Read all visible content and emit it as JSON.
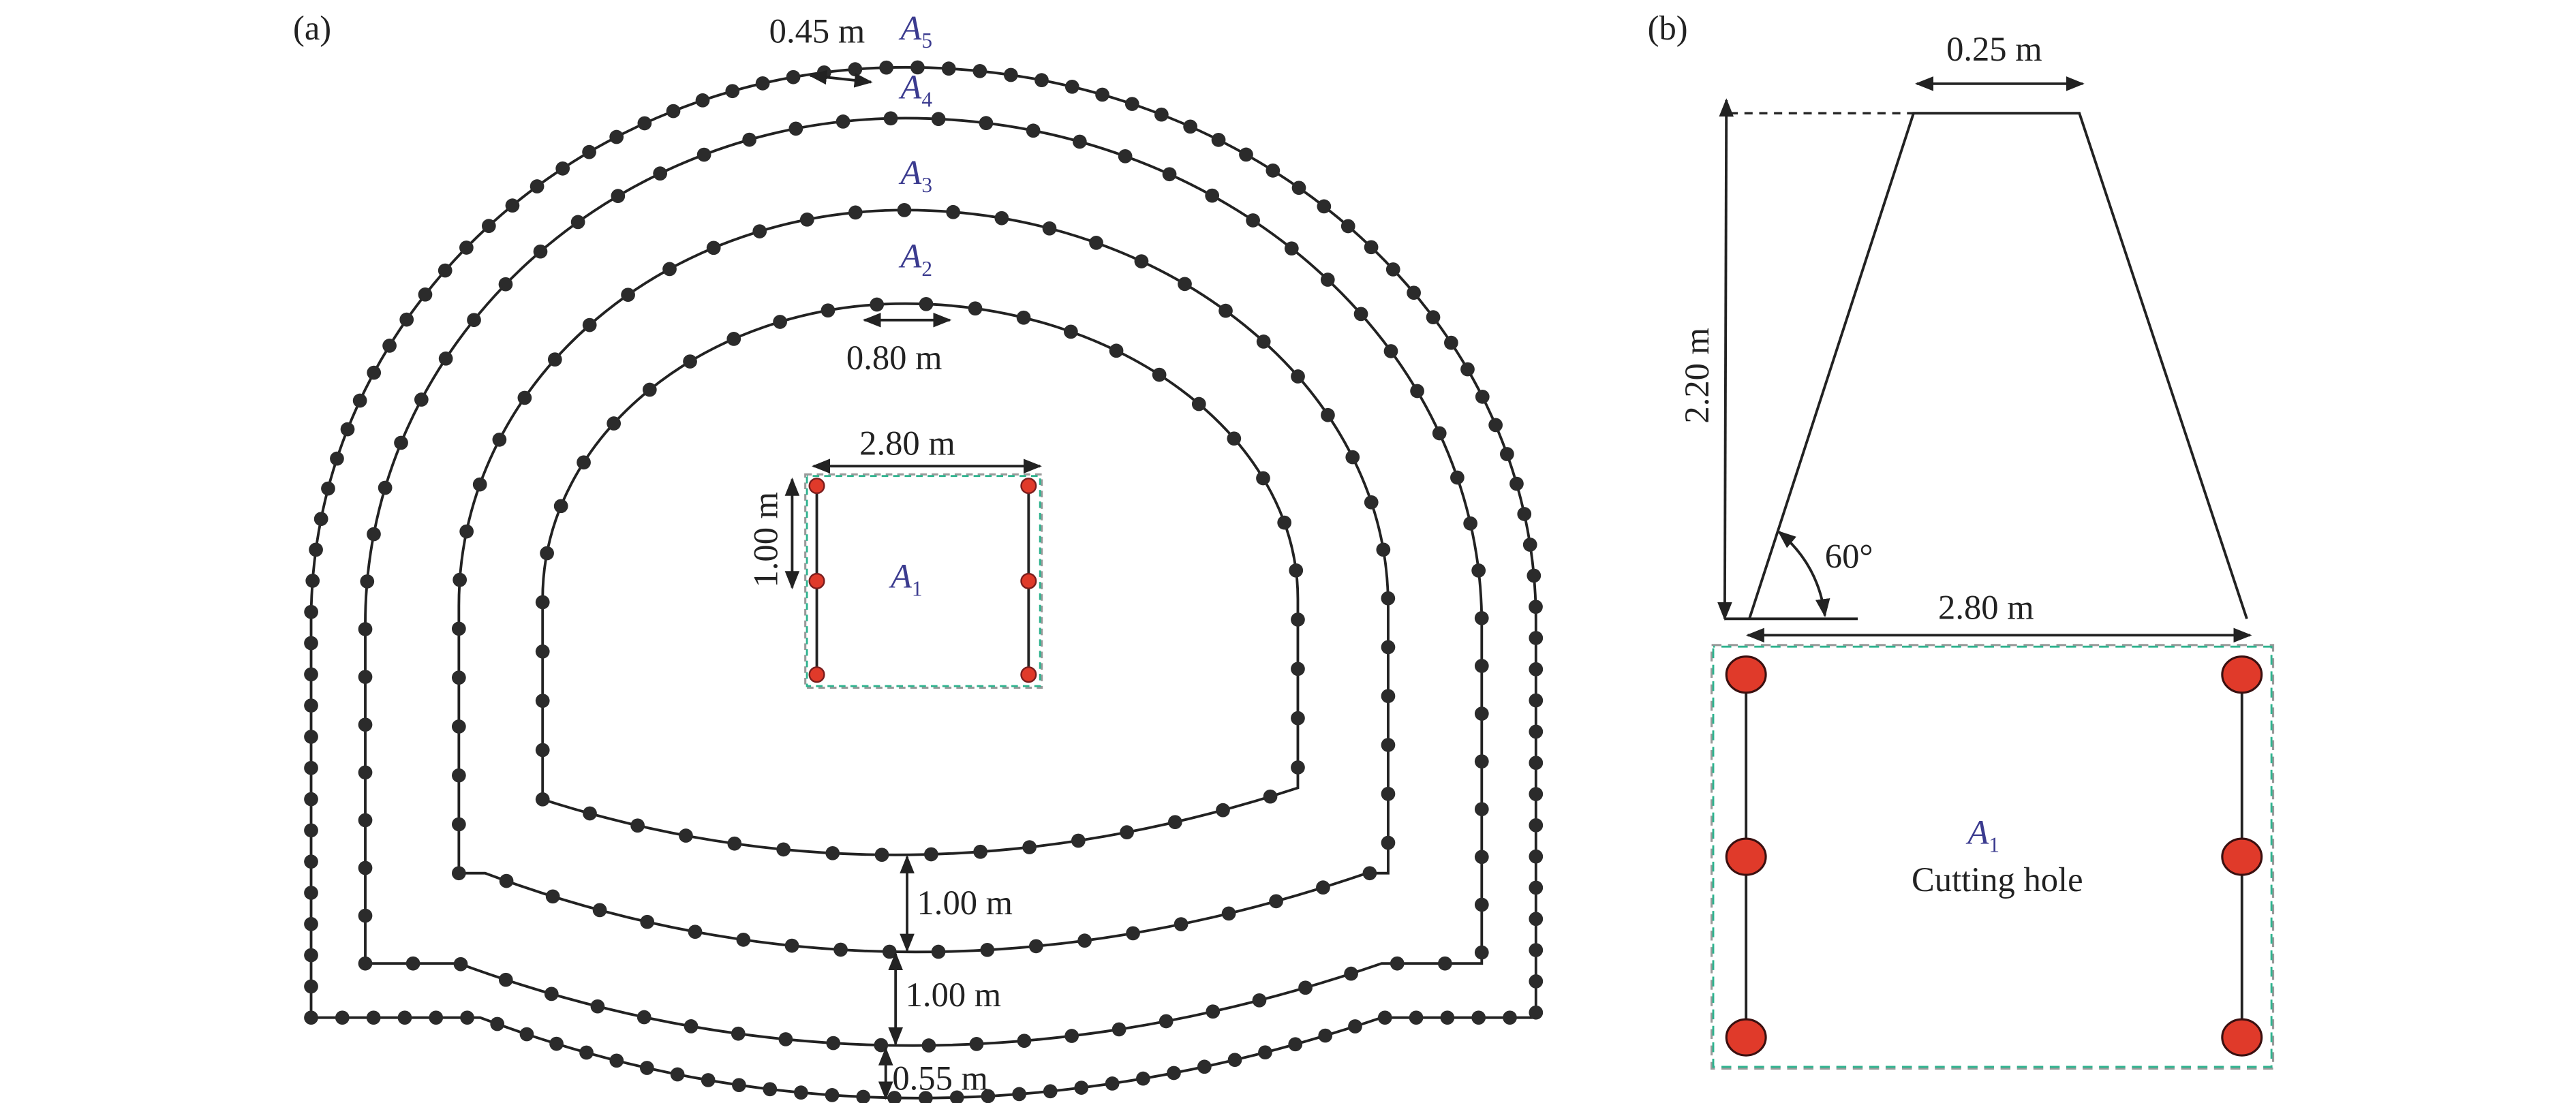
{
  "panel_a": {
    "label": "(a)",
    "contours": [
      {
        "name": "A",
        "sub": "2"
      },
      {
        "name": "A",
        "sub": "3"
      },
      {
        "name": "A",
        "sub": "4"
      },
      {
        "name": "A",
        "sub": "5"
      }
    ],
    "cut": {
      "name": "A",
      "sub": "1"
    },
    "dims": {
      "top_spacing": "0.45 m",
      "a2_spacing": "0.80 m",
      "cut_width": "2.80 m",
      "cut_spacing": "1.00 m",
      "gap_a2_a3": "1.00 m",
      "gap_a3_a4": "1.00 m",
      "gap_a4_a5": "0.55 m"
    }
  },
  "panel_b": {
    "label": "(b)",
    "top_width": "0.25 m",
    "height": "2.20 m",
    "angle": "60°",
    "bottom_width": "2.80 m",
    "cut": {
      "name": "A",
      "sub": "1"
    },
    "cut_caption": "Cutting hole"
  },
  "colors": {
    "hole": "#2b2b2b",
    "cut_hole": "#e03a2a",
    "dash_teal": "#2fb38f",
    "dash_gray": "#9a9a9a",
    "label": "#3b3b8f"
  }
}
